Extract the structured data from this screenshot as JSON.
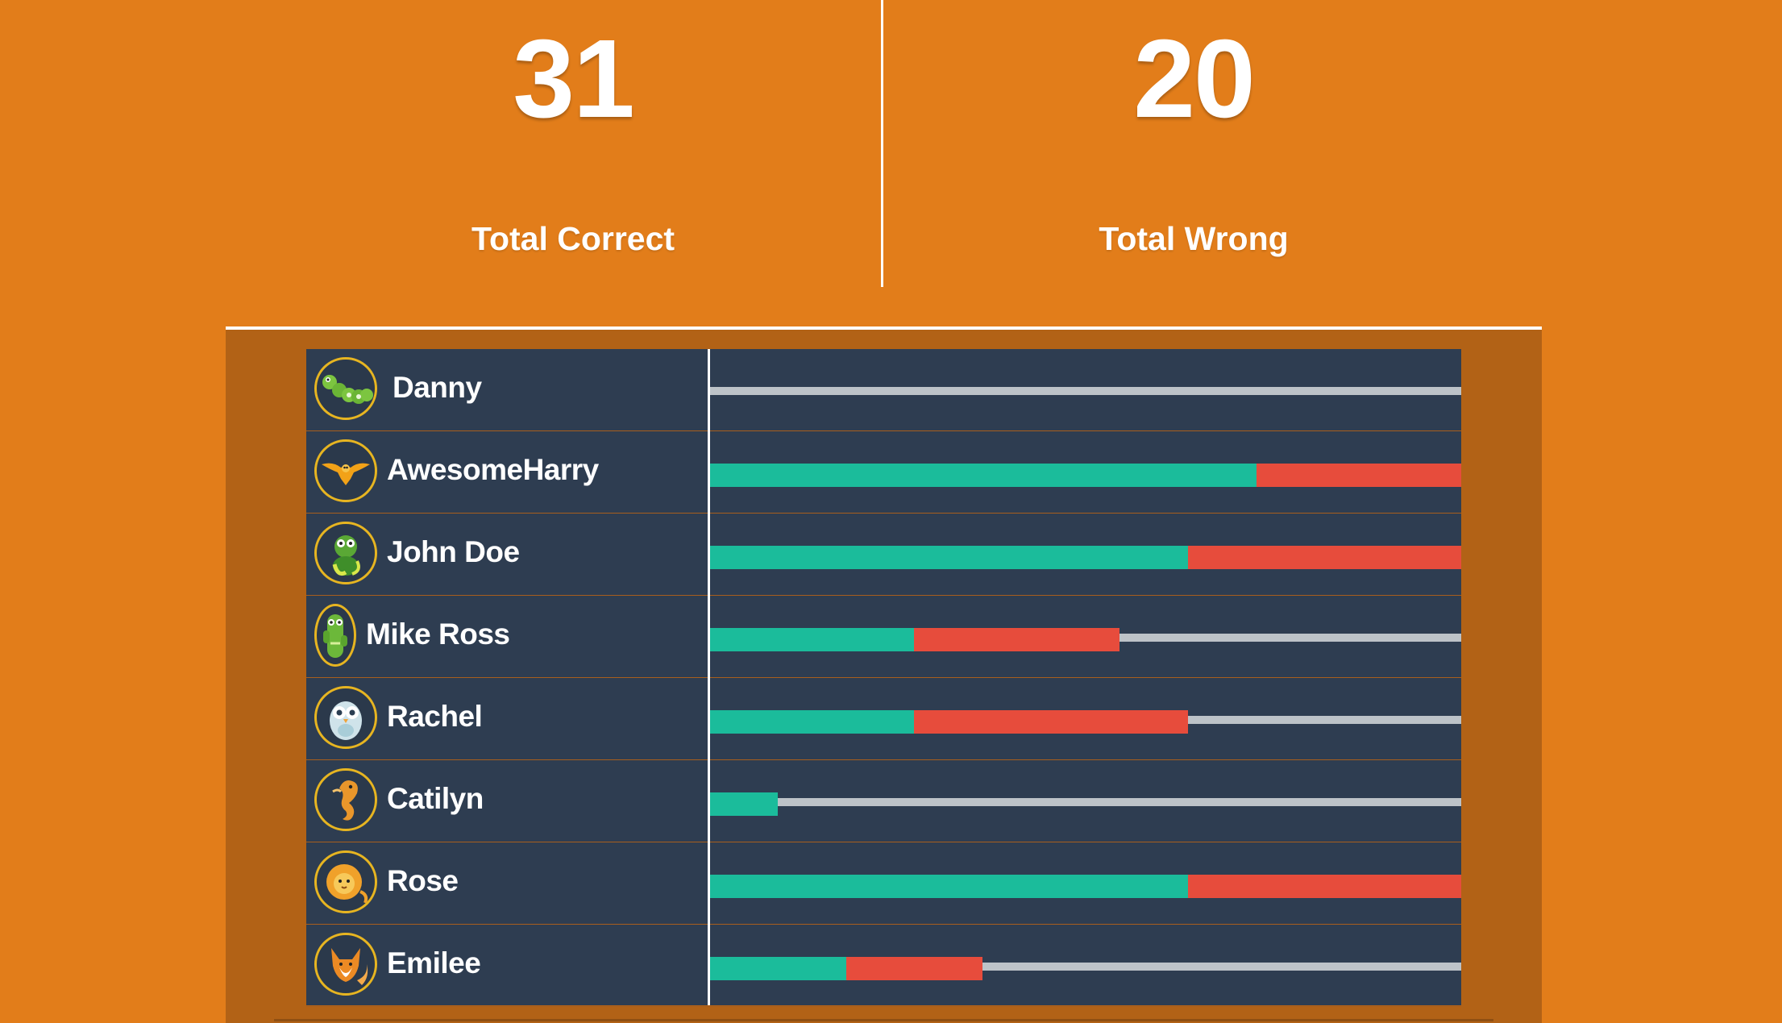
{
  "summary": {
    "total_correct": {
      "value": "31",
      "label": "Total Correct"
    },
    "total_wrong": {
      "value": "20",
      "label": "Total Wrong"
    }
  },
  "colors": {
    "background": "#e27d1a",
    "panel": "#b26216",
    "board": "#2e3d51",
    "correct": "#1bbc9b",
    "wrong": "#e74c3c",
    "remaining": "#bdc3c8",
    "avatar_ring": "#e7b521"
  },
  "bar_total_questions": 11,
  "players": [
    {
      "name": "Danny",
      "avatar_icon": "caterpillar-icon",
      "correct": 0,
      "wrong": 0
    },
    {
      "name": "AwesomeHarry",
      "avatar_icon": "bird-icon",
      "correct": 8,
      "wrong": 3
    },
    {
      "name": "John Doe",
      "avatar_icon": "monster-icon",
      "correct": 7,
      "wrong": 4
    },
    {
      "name": "Mike Ross",
      "avatar_icon": "cactus-icon",
      "correct": 3,
      "wrong": 3
    },
    {
      "name": "Rachel",
      "avatar_icon": "owl-icon",
      "correct": 3,
      "wrong": 4
    },
    {
      "name": "Catilyn",
      "avatar_icon": "seahorse-icon",
      "correct": 1,
      "wrong": 0
    },
    {
      "name": "Rose",
      "avatar_icon": "lion-icon",
      "correct": 7,
      "wrong": 4
    },
    {
      "name": "Emilee",
      "avatar_icon": "fox-icon",
      "correct": 2,
      "wrong": 2
    }
  ]
}
